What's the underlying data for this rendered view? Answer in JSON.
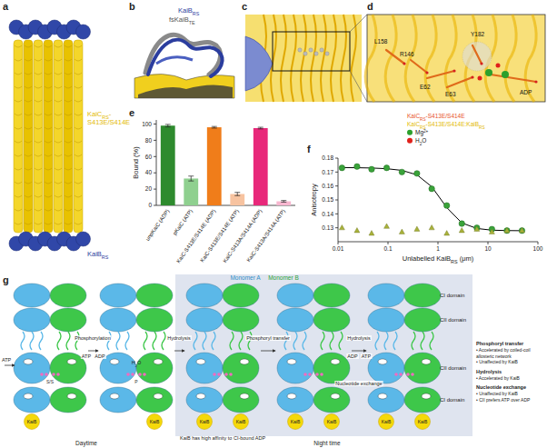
{
  "panels": {
    "a": {
      "letter": "a",
      "labels": [
        {
          "lines": [
            [
              "KaiC",
              {
                "sub": "RS"
              },
              "-"
            ],
            [
              "S413E/S414E"
            ]
          ],
          "color": "#e3b900"
        },
        {
          "lines": [
            [
              "KaiB",
              {
                "sub": "RS"
              }
            ]
          ],
          "color": "#2b3d9e"
        }
      ]
    },
    "b": {
      "letter": "b",
      "labels": [
        {
          "lines": [
            [
              "KaiB",
              {
                "sub": "RS"
              }
            ]
          ],
          "color": "#2b3d9e"
        },
        {
          "lines": [
            [
              "fsKaiB",
              {
                "sub": "TE"
              }
            ]
          ],
          "color": "#555555"
        }
      ]
    },
    "c": {
      "letter": "c"
    },
    "d": {
      "letter": "d",
      "residues": [
        "L158",
        "R146",
        "Y182",
        "E62",
        "E63",
        "ADP"
      ],
      "legend": [
        {
          "rich": [
            "KaiC",
            {
              "sub": "RS"
            },
            "-S413E/S414E"
          ],
          "color": "#e8502a"
        },
        {
          "rich": [
            "KaiC",
            {
              "sub": "RS"
            },
            "-S413E/S414E:KaiB",
            {
              "sub": "RS"
            }
          ],
          "color": "#e3b900"
        },
        {
          "rich": [
            "Mg",
            {
              "sup": "2+"
            }
          ],
          "color": "#2ca02c",
          "marker": "circle"
        },
        {
          "rich": [
            "H",
            {
              "sub": "2"
            },
            "O"
          ],
          "color": "#e0201b",
          "marker": "circle"
        }
      ]
    },
    "e": {
      "letter": "e"
    },
    "f": {
      "letter": "f"
    },
    "g": {
      "letter": "g",
      "monomers": [
        "Monomer A",
        "Monomer B"
      ],
      "domains": [
        "CI domain",
        "CII domain",
        "CII domain",
        "CI domain"
      ],
      "steps": [
        "ATP",
        "Phosphorylation",
        "ATP",
        "ADP",
        "Hydrolysis",
        "Phosphoryl transfer",
        "Hydrolysis",
        "ADP",
        "ATP",
        "Nucleotide exchange"
      ],
      "h2o": [
        "H",
        {
          "sub": "2"
        },
        "O"
      ],
      "ss": "S/S",
      "p": "P",
      "kaib": "KaiB",
      "note": "KaiB has high affinity to CI-bound ADP",
      "phases": [
        "Daytime",
        "Night time"
      ],
      "notes": [
        {
          "head": "Phosphoryl transfer",
          "lines": [
            "• Accelerated by coiled-coil",
            "allosteric network",
            "• Unaffected by KaiB"
          ]
        },
        {
          "head": "Hydrolysis",
          "lines": [
            "• Accelerated by KaiB"
          ]
        },
        {
          "head": "Nucleotide exchange",
          "lines": [
            "• Unaffected by KaiB",
            "• CII prefers ATP over ADP"
          ]
        }
      ]
    }
  },
  "chart_data": [
    {
      "type": "bar",
      "y_label": "Bound (%)",
      "categories": [
        "unpKaiC (ADP)",
        "pKaiC (ATP)",
        "KaiC-S413E/S414E (ADP)",
        "KaiC-S413E/S414E (ATP)",
        "KaiC-S413A/S414A (ADP)",
        "KaiC-S413A/S414A (ATP)"
      ],
      "values": [
        98,
        33,
        96,
        14,
        95,
        5
      ],
      "errors": [
        1.5,
        3,
        1,
        2,
        1,
        1
      ],
      "colors": [
        "#2e8b2e",
        "#8fd08f",
        "#f07d1a",
        "#f7c3a0",
        "#e8287a",
        "#f7b6cf"
      ],
      "ylim": [
        0,
        105
      ],
      "yticks": [
        0,
        20,
        40,
        60,
        80,
        100
      ]
    },
    {
      "type": "scatter",
      "x_label": [
        "Unlabelled KaiB",
        {
          "sub": "RS"
        },
        " (μm)"
      ],
      "y_label": "Anisotropy",
      "log": "x",
      "xlim": [
        0.01,
        100
      ],
      "xticks": [
        0.01,
        0.1,
        1,
        10,
        100
      ],
      "ylim": [
        0.12,
        0.18
      ],
      "yticks": [
        0.13,
        0.14,
        0.15,
        0.16,
        0.17,
        0.18
      ],
      "x": [
        0.012,
        0.024,
        0.047,
        0.094,
        0.19,
        0.38,
        0.75,
        1.5,
        3,
        6,
        12,
        24,
        48
      ],
      "series": [
        {
          "type": "line",
          "color": "#000000",
          "values": [
            0.1732,
            0.1731,
            0.1729,
            0.1724,
            0.1712,
            0.168,
            0.1595,
            0.1445,
            0.1335,
            0.1295,
            0.1283,
            0.128,
            0.1279
          ]
        },
        {
          "type": "scatter",
          "marker": "circle",
          "color": "#3aa33a",
          "values": [
            0.173,
            0.174,
            0.172,
            0.173,
            0.17,
            0.169,
            0.158,
            0.146,
            0.133,
            0.13,
            0.129,
            0.128,
            0.128
          ]
        },
        {
          "type": "scatter",
          "marker": "triangle",
          "color": "#a8b13a",
          "values": [
            0.13,
            0.128,
            0.126,
            0.131,
            0.127,
            0.129,
            0.13,
            0.126,
            0.128,
            0.129,
            0.127,
            0.128,
            0.128
          ]
        }
      ]
    }
  ]
}
